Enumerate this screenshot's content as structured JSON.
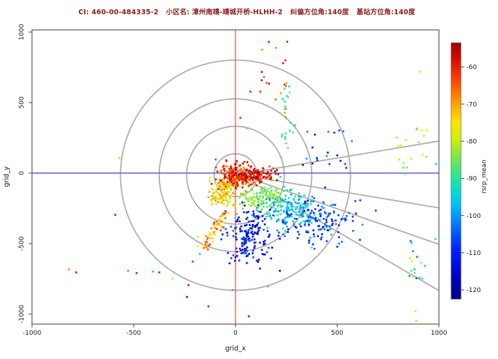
{
  "title": "CI: 460-00-484335-2   小区名: 漳州南靖-靖城开桥-HLHH-2   纠偏方位角:140度   基站方位角:140度",
  "chart_data": {
    "type": "scatter",
    "xlabel": "grid_x",
    "ylabel": "grid_y",
    "xlim": [
      -1000,
      1000
    ],
    "ylim": [
      -1000,
      1000
    ],
    "x_ticks": [
      -1000,
      -500,
      0,
      500,
      1000
    ],
    "y_ticks": [
      -1000,
      -500,
      0,
      500,
      1000
    ],
    "grid": false,
    "legend_position": "right-colorbar",
    "colorbar": {
      "label": "rsrp_mean",
      "ticks": [
        -60,
        -70,
        -80,
        -90,
        -100,
        -110,
        -120
      ],
      "top_value": -53.5,
      "bottom_value": -122.5
    },
    "colormap": [
      [
        -122,
        "#00007F"
      ],
      [
        -116,
        "#0000CD"
      ],
      [
        -110,
        "#0018FF"
      ],
      [
        -104,
        "#0060FF"
      ],
      [
        -99,
        "#00A6FF"
      ],
      [
        -95,
        "#00D9E8"
      ],
      [
        -91,
        "#10E6B0"
      ],
      [
        -87,
        "#4FE370"
      ],
      [
        -83,
        "#8FE83A"
      ],
      [
        -79,
        "#D6F000"
      ],
      [
        -75,
        "#FFE400"
      ],
      [
        -71,
        "#FFB000"
      ],
      [
        -67,
        "#FF7500"
      ],
      [
        -63,
        "#FB3C00"
      ],
      [
        -59,
        "#E31000"
      ],
      [
        -55,
        "#B10303"
      ],
      [
        -52,
        "#7F0000"
      ]
    ],
    "reference_lines": {
      "vertical_x": 0,
      "vertical_color": "#ff4242",
      "horizontal_y": 0,
      "horizontal_color": "#5b5bd6"
    },
    "range_rings": {
      "center": [
        0,
        -15
      ],
      "radii": [
        105,
        240,
        375,
        565
      ],
      "color": "#aeaeae"
    },
    "sector_rays": {
      "origin": [
        17,
        -10
      ],
      "targets": [
        [
          1000,
          227
        ],
        [
          1000,
          -247
        ],
        [
          1000,
          -505
        ],
        [
          1000,
          -833
        ]
      ],
      "color": "#aeaeae"
    },
    "clusters": [
      {
        "name": "core-hot",
        "type": "gauss",
        "cx": 0,
        "cy": -20,
        "sx": 42,
        "sy": 45,
        "n": 220,
        "vmin": -68,
        "vmax": -55
      },
      {
        "name": "red-band-east",
        "type": "gauss",
        "cx": 108,
        "cy": -20,
        "sx": 45,
        "sy": 25,
        "n": 110,
        "vmin": -64,
        "vmax": -52
      },
      {
        "name": "orange-southwest",
        "type": "gauss",
        "cx": -56,
        "cy": -146,
        "sx": 35,
        "sy": 60,
        "n": 120,
        "vmin": -80,
        "vmax": -68
      },
      {
        "name": "orange-streak-sw",
        "type": "streak",
        "x1": -49,
        "y1": -271,
        "x2": -150,
        "y2": -528,
        "jitter": 14,
        "n": 55,
        "vmin": -78,
        "vmax": -62
      },
      {
        "name": "yellow-green-band",
        "type": "gauss",
        "cx": 136,
        "cy": -171,
        "sx": 63,
        "sy": 45,
        "n": 140,
        "vmin": -90,
        "vmax": -78
      },
      {
        "name": "cyan-cluster",
        "type": "gauss",
        "cx": 269,
        "cy": -261,
        "sx": 77,
        "sy": 65,
        "n": 170,
        "vmin": -102,
        "vmax": -88
      },
      {
        "name": "blue-cluster-east",
        "type": "gauss",
        "cx": 399,
        "cy": -337,
        "sx": 87,
        "sy": 75,
        "n": 150,
        "vmin": -114,
        "vmax": -98
      },
      {
        "name": "blue-cluster-south",
        "type": "gauss",
        "cx": 66,
        "cy": -437,
        "sx": 63,
        "sy": 100,
        "n": 130,
        "vmin": -118,
        "vmax": -103
      },
      {
        "name": "blue-streak-south",
        "type": "streak",
        "x1": 101,
        "y1": -286,
        "x2": 14,
        "y2": -613,
        "jitter": 16,
        "n": 50,
        "vmin": -118,
        "vmax": -104
      },
      {
        "name": "green-column-north",
        "type": "box",
        "x1": 224,
        "x2": 294,
        "y1": 40,
        "y2": 640,
        "n": 22,
        "vmin": -95,
        "vmax": -84
      },
      {
        "name": "blue-sparse-northeast",
        "type": "box",
        "x1": 330,
        "x2": 575,
        "y1": 15,
        "y2": 315,
        "n": 20,
        "vmin": -114,
        "vmax": -99
      },
      {
        "name": "red-column-north",
        "type": "box",
        "x1": 101,
        "x2": 259,
        "y1": 392,
        "y2": 945,
        "n": 13,
        "vmin": -70,
        "vmax": -57
      },
      {
        "name": "far-east-upper-column",
        "type": "box",
        "x1": 776,
        "x2": 941,
        "y1": -10,
        "y2": 317,
        "n": 18,
        "vmin": -88,
        "vmax": -74
      },
      {
        "name": "far-east-lower-column",
        "type": "box",
        "x1": 853,
        "x2": 941,
        "y1": -764,
        "y2": -362,
        "n": 16,
        "vmin": -106,
        "vmax": -76
      }
    ],
    "points": [
      [
        -570,
        106,
        -83
      ],
      [
        -591,
        -296,
        -57
      ],
      [
        -818,
        -683,
        -68
      ],
      [
        -783,
        -704,
        -58
      ],
      [
        -528,
        -693,
        -66
      ],
      [
        -486,
        -709,
        -58
      ],
      [
        -406,
        -698,
        -97
      ],
      [
        -374,
        -704,
        -58
      ],
      [
        -308,
        -749,
        -80
      ],
      [
        -231,
        -794,
        -57
      ],
      [
        -238,
        -879,
        -110
      ],
      [
        -133,
        -945,
        -59
      ],
      [
        -14,
        -829,
        -97
      ],
      [
        66,
        -1015,
        -108
      ],
      [
        161,
        -804,
        -88
      ],
      [
        885,
        -980,
        -80
      ],
      [
        888,
        -1050,
        -73
      ],
      [
        -185,
        -452,
        -80
      ],
      [
        -175,
        -573,
        -97
      ],
      [
        -210,
        -628,
        -60
      ],
      [
        24,
        392,
        -60
      ],
      [
        56,
        317,
        -86
      ],
      [
        73,
        578,
        -59
      ],
      [
        129,
        658,
        -58
      ],
      [
        164,
        930,
        -57
      ],
      [
        234,
        779,
        -59
      ],
      [
        241,
        628,
        -61
      ],
      [
        122,
        578,
        -60
      ],
      [
        248,
        457,
        -68
      ],
      [
        248,
        392,
        -69
      ],
      [
        906,
        719,
        -78
      ],
      [
        983,
        -467,
        -95
      ],
      [
        986,
        65,
        -97
      ]
    ]
  }
}
